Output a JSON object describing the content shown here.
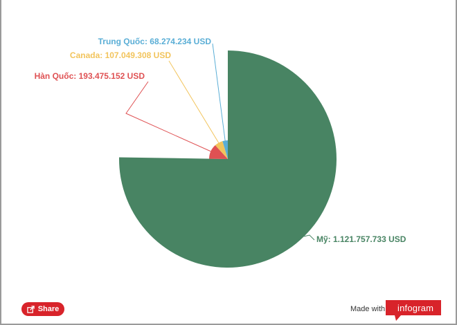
{
  "chart_data": {
    "type": "pie",
    "unit": "USD",
    "slices": [
      {
        "name": "Mỹ",
        "value": 1121757733,
        "label": "Mỹ: 1.121.757.733 USD",
        "color": "#488463"
      },
      {
        "name": "Hàn Quốc",
        "value": 193475152,
        "label": "Hàn Quốc: 193.475.152 USD",
        "color": "#df5153"
      },
      {
        "name": "Canada",
        "value": 107049308,
        "label": "Canada: 107.049.308 USD",
        "color": "#f2c45c"
      },
      {
        "name": "Trung Quốc",
        "value": 68274234,
        "label": "Trung Quốc: 68.274.234 USD",
        "color": "#5aaed6"
      }
    ]
  },
  "footer": {
    "share_label": "Share",
    "made_with_label": "Made with",
    "brand_name": "infogram",
    "brand_color": "#d8232a"
  }
}
